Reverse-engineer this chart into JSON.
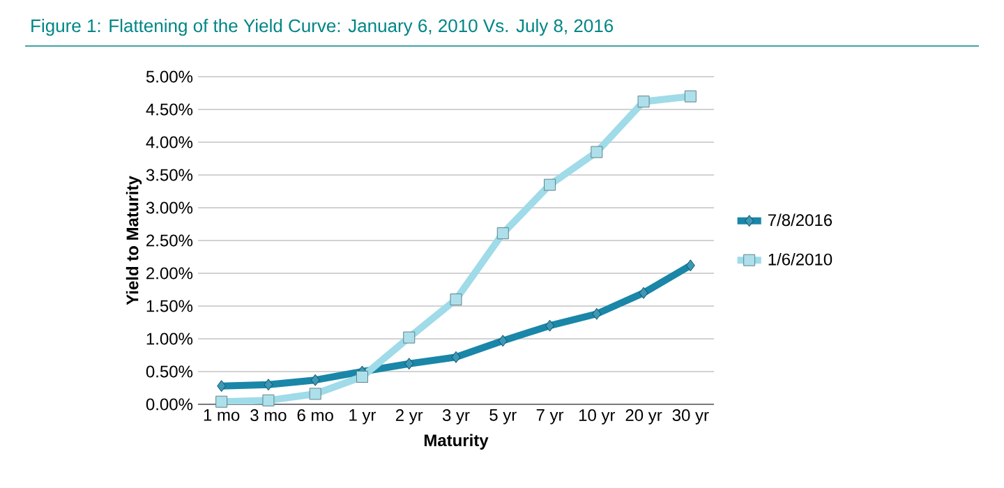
{
  "chart_data": {
    "type": "line",
    "title": "Figure 1: Flattening of the Yield Curve: January 6, 2010 Vs. July 8, 2016",
    "xlabel": "Maturity",
    "ylabel": "Yield to Maturity",
    "categories": [
      "1 mo",
      "3 mo",
      "6 mo",
      "1 yr",
      "2 yr",
      "3 yr",
      "5 yr",
      "7 yr",
      "10 yr",
      "20 yr",
      "30 yr"
    ],
    "series": [
      {
        "name": "7/8/2016",
        "color": "#1a86a8",
        "marker": "diamond",
        "values": [
          0.28,
          0.3,
          0.37,
          0.5,
          0.62,
          0.72,
          0.97,
          1.2,
          1.38,
          1.7,
          2.12
        ]
      },
      {
        "name": "1/6/2010",
        "color": "#9fdbe8",
        "marker": "square",
        "values": [
          0.04,
          0.06,
          0.16,
          0.42,
          1.02,
          1.6,
          2.61,
          3.35,
          3.85,
          4.62,
          4.7
        ]
      }
    ],
    "ylim": [
      0,
      5
    ],
    "yticks": [
      {
        "value": 0,
        "label": "0.00%"
      },
      {
        "value": 0.5,
        "label": "0.50%"
      },
      {
        "value": 1,
        "label": "1.00%"
      },
      {
        "value": 1.5,
        "label": "1.50%"
      },
      {
        "value": 2,
        "label": "2.00%"
      },
      {
        "value": 2.5,
        "label": "2.50%"
      },
      {
        "value": 3,
        "label": "3.00%"
      },
      {
        "value": 3.5,
        "label": "3.50%"
      },
      {
        "value": 4,
        "label": "4.00%"
      },
      {
        "value": 4.5,
        "label": "4.50%"
      },
      {
        "value": 5,
        "label": "5.00%"
      }
    ],
    "grid": "y",
    "legend": "right",
    "line_style": "solid"
  }
}
